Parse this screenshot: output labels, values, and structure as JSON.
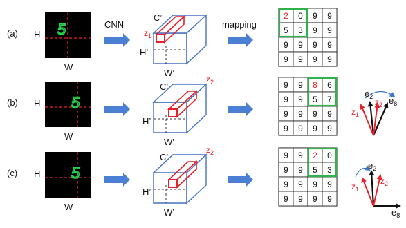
{
  "colors": {
    "red": "#e8202a",
    "blue_arrow": "#4a7fd4",
    "cube_edge": "#4472c4",
    "green_box": "#2fb24a",
    "digit_green": "#21d64a"
  },
  "rows": [
    {
      "label": "(a)",
      "input_h": "H",
      "input_w": "W",
      "digit": "5",
      "arrow1_label": "CNN",
      "arrow2_label": "mapping",
      "cube_c": "C’",
      "cube_h": "H’",
      "cube_w": "W’",
      "z_label": "z",
      "z_sub": "1",
      "grid": [
        [
          "2",
          "0",
          "9",
          "9"
        ],
        [
          "5",
          "3",
          "9",
          "9"
        ],
        [
          "9",
          "9",
          "9",
          "9"
        ],
        [
          "9",
          "9",
          "9",
          "9"
        ]
      ],
      "red_cell": "2"
    },
    {
      "label": "(b)",
      "input_h": "H",
      "input_w": "W",
      "digit": "5",
      "arrow1_label": "",
      "arrow2_label": "",
      "cube_c": "C’",
      "cube_h": "H’",
      "cube_w": "W’",
      "z_label": "z",
      "z_sub": "2",
      "grid": [
        [
          "9",
          "9",
          "8",
          "6"
        ],
        [
          "9",
          "9",
          "5",
          "7"
        ],
        [
          "9",
          "9",
          "9",
          "9"
        ],
        [
          "9",
          "9",
          "9",
          "9"
        ]
      ],
      "red_cell": "8",
      "vectors": {
        "e_top": "e",
        "e_top_sub": "2",
        "e_right": "e",
        "e_right_sub": "8",
        "z1": "z",
        "z1_sub": "1",
        "z2": "z",
        "z2_sub": "2"
      }
    },
    {
      "label": "(c)",
      "input_h": "H",
      "input_w": "W",
      "digit": "5",
      "arrow1_label": "",
      "arrow2_label": "",
      "cube_c": "C’",
      "cube_h": "H’",
      "cube_w": "W’",
      "z_label": "z",
      "z_sub": "2",
      "grid": [
        [
          "9",
          "9",
          "2",
          "0"
        ],
        [
          "9",
          "9",
          "5",
          "3"
        ],
        [
          "9",
          "9",
          "9",
          "9"
        ],
        [
          "9",
          "9",
          "9",
          "9"
        ]
      ],
      "red_cell": "2",
      "vectors": {
        "e_top": "e",
        "e_top_sub": "2",
        "e_right": "e",
        "e_right_sub": "8",
        "z1": "z",
        "z1_sub": "1",
        "z2": "z",
        "z2_sub": "2"
      }
    }
  ]
}
